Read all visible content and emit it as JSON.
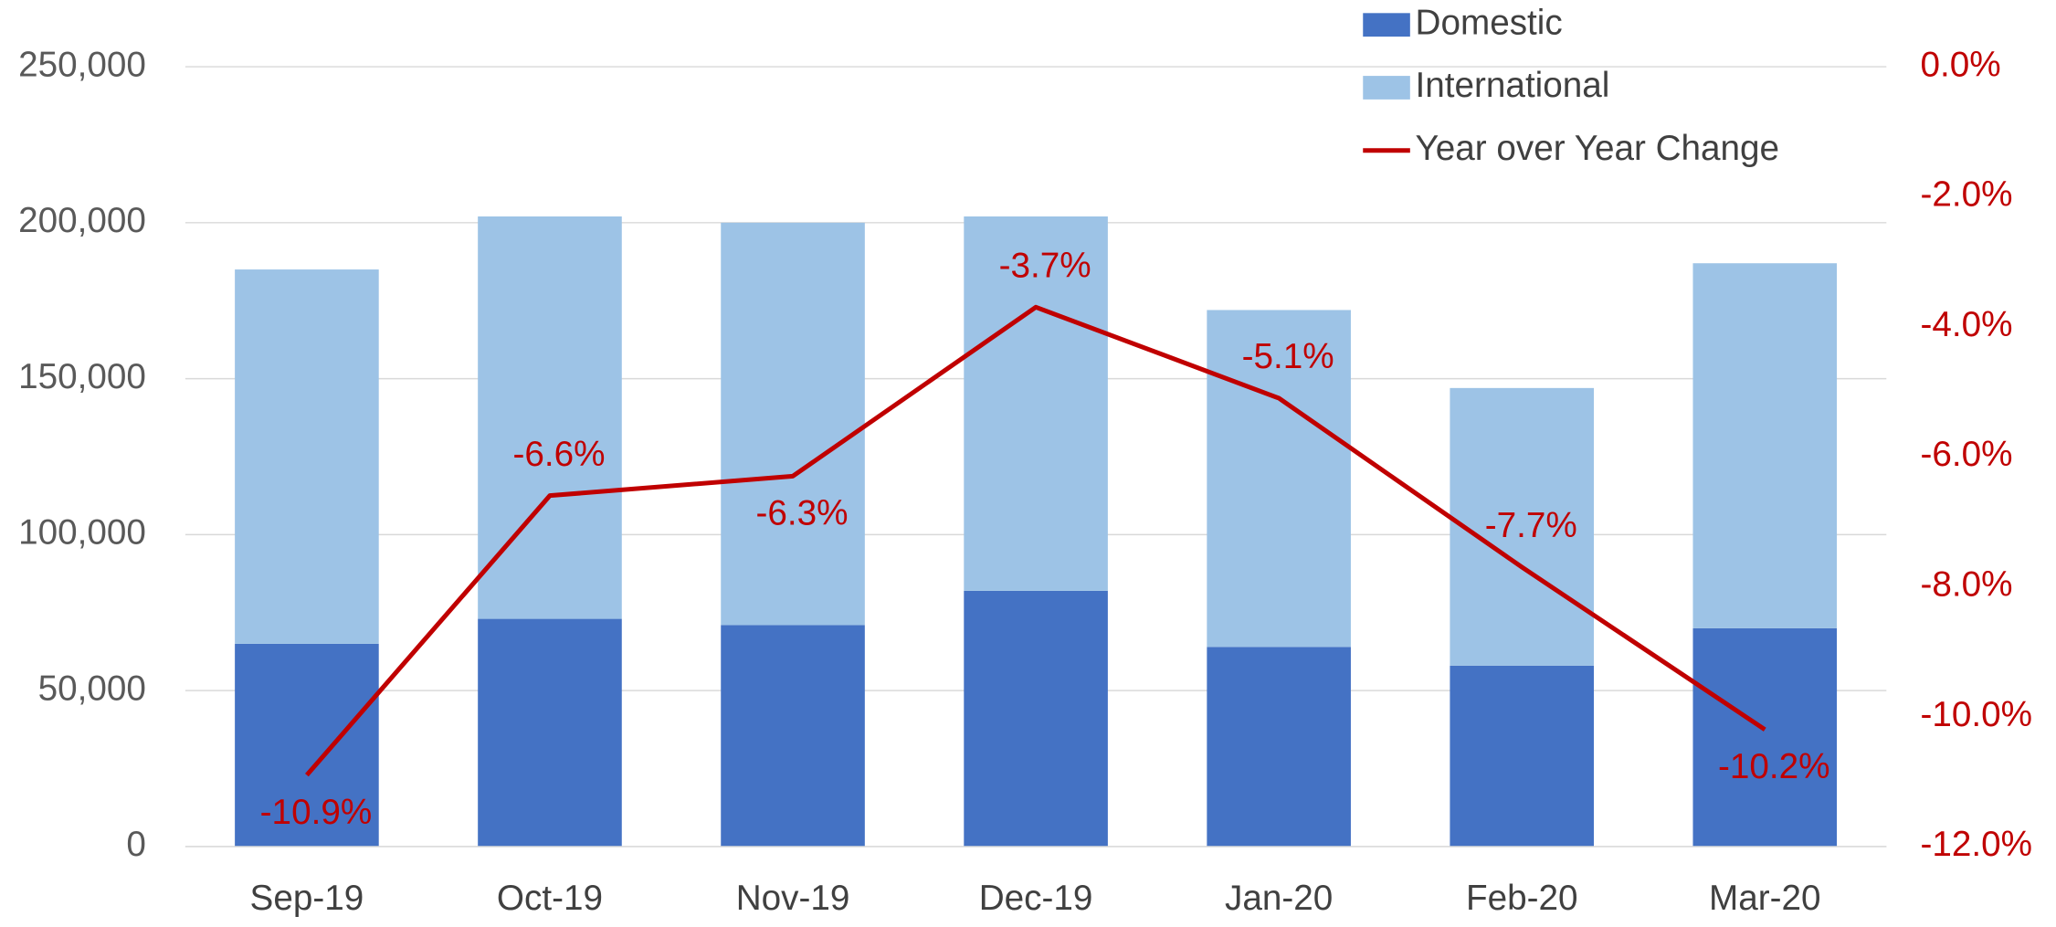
{
  "chart_data": {
    "type": "bar-line",
    "categories": [
      "Sep-19",
      "Oct-19",
      "Nov-19",
      "Dec-19",
      "Jan-20",
      "Feb-20",
      "Mar-20"
    ],
    "series": [
      {
        "name": "Domestic",
        "type": "bar",
        "color": "#4472c4",
        "values": [
          65000,
          73000,
          71000,
          82000,
          64000,
          58000,
          70000
        ]
      },
      {
        "name": "International",
        "type": "bar",
        "color": "#9dc3e6",
        "values": [
          120000,
          129000,
          129000,
          120000,
          108000,
          89000,
          117000
        ]
      },
      {
        "name": "Year over Year Change",
        "type": "line",
        "axis": "y2",
        "color": "#c00000",
        "values": [
          -10.9,
          -6.6,
          -6.3,
          -3.7,
          -5.1,
          -7.7,
          -10.2
        ],
        "value_labels": [
          "-10.9%",
          "-6.6%",
          "-6.3%",
          "-3.7%",
          "-5.1%",
          "-7.7%",
          "-10.2%"
        ]
      }
    ],
    "stacked": true,
    "ylim": [
      0,
      250000
    ],
    "yticks": [
      0,
      {
        "value": 50000,
        "label": "50,000"
      },
      {
        "value": 100000,
        "label": "100,000"
      },
      {
        "value": 150000,
        "label": "150,000"
      },
      {
        "value": 200000,
        "label": "200,000"
      },
      {
        "value": 250000,
        "label": "250,000"
      }
    ],
    "y2lim": [
      -12,
      0
    ],
    "y2ticks": [
      {
        "value": 0,
        "label": "0.0%"
      },
      {
        "value": -2,
        "label": "-2.0%"
      },
      {
        "value": -4,
        "label": "-4.0%"
      },
      {
        "value": -6,
        "label": "-6.0%"
      },
      {
        "value": -8,
        "label": "-8.0%"
      },
      {
        "value": -10,
        "label": "-10.0%"
      },
      {
        "value": -12,
        "label": "-12.0%"
      }
    ],
    "grid": true,
    "legend": "top-right"
  }
}
